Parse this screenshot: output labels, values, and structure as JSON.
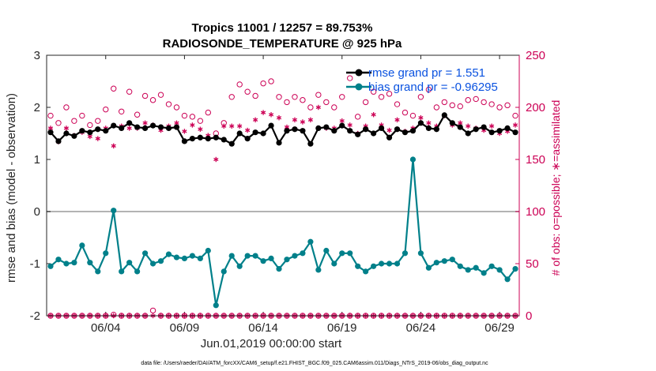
{
  "chart_data": {
    "type": "line",
    "title_line1": "Tropics 11001 / 12257 = 89.753%",
    "title_line2": "RADIOSONDE_TEMPERATURE @ 925 hPa",
    "xlabel": "Jun.01,2019 00:00:00 start",
    "ylabel": "rmse and bias (model - observation)",
    "y2label": "# of obs: o=possible; ∗=assimilated",
    "footer": "data file: /Users/raeder/DAI/ATM_forcXX/CAM6_setup/f.e21.FHIST_BGC.f09_025.CAM6assim.011/Diags_NTrS_2019-06/obs_diag_output.nc",
    "xlim": [
      0.75,
      30.75
    ],
    "ylim": [
      -2,
      3
    ],
    "y2lim": [
      0,
      250
    ],
    "x_tick_values": [
      4.5,
      9.5,
      14.5,
      19.5,
      24.5,
      29.5
    ],
    "x_tick_labels": [
      "06/04",
      "06/09",
      "06/14",
      "06/19",
      "06/24",
      "06/29"
    ],
    "y_ticks": [
      -2,
      -1,
      0,
      1,
      2,
      3
    ],
    "y2_ticks": [
      0,
      50,
      100,
      150,
      200,
      250
    ],
    "zero_line": 0,
    "x": [
      1.0,
      1.5,
      2.0,
      2.5,
      3.0,
      3.5,
      4.0,
      4.5,
      5.0,
      5.5,
      6.0,
      6.5,
      7.0,
      7.5,
      8.0,
      8.5,
      9.0,
      9.5,
      10.0,
      10.5,
      11.0,
      11.5,
      12.0,
      12.5,
      13.0,
      13.5,
      14.0,
      14.5,
      15.0,
      15.5,
      16.0,
      16.5,
      17.0,
      17.5,
      18.0,
      18.5,
      19.0,
      19.5,
      20.0,
      20.5,
      21.0,
      21.5,
      22.0,
      22.5,
      23.0,
      23.5,
      24.0,
      24.5,
      25.0,
      25.5,
      26.0,
      26.5,
      27.0,
      27.5,
      28.0,
      28.5,
      29.0,
      29.5,
      30.0,
      30.5
    ],
    "series": [
      {
        "name": "rmse",
        "legend": "rmse grand pr = 1.551",
        "color": "#000000",
        "values": [
          1.52,
          1.35,
          1.5,
          1.45,
          1.55,
          1.52,
          1.58,
          1.55,
          1.65,
          1.6,
          1.7,
          1.62,
          1.6,
          1.65,
          1.62,
          1.6,
          1.62,
          1.35,
          1.4,
          1.42,
          1.4,
          1.42,
          1.38,
          1.3,
          1.5,
          1.4,
          1.52,
          1.5,
          1.65,
          1.32,
          1.55,
          1.58,
          1.55,
          1.3,
          1.6,
          1.62,
          1.55,
          1.65,
          1.55,
          1.48,
          1.58,
          1.5,
          1.6,
          1.42,
          1.58,
          1.52,
          1.55,
          1.7,
          1.6,
          1.58,
          1.85,
          1.7,
          1.62,
          1.5,
          1.58,
          1.62,
          1.52,
          1.55,
          1.6,
          1.52
        ]
      },
      {
        "name": "bias",
        "legend": "bias grand pr = -0.96295",
        "color": "#00808a",
        "values": [
          -1.05,
          -0.92,
          -1.0,
          -0.98,
          -0.65,
          -0.98,
          -1.15,
          -0.8,
          0.02,
          -1.15,
          -0.98,
          -1.15,
          -0.8,
          -1.0,
          -0.95,
          -0.82,
          -0.88,
          -0.9,
          -0.85,
          -0.9,
          -0.75,
          -1.8,
          -1.15,
          -0.85,
          -1.05,
          -0.85,
          -0.85,
          -0.95,
          -0.9,
          -1.1,
          -0.92,
          -0.85,
          -0.8,
          -0.58,
          -1.12,
          -0.75,
          -1.0,
          -0.8,
          -0.8,
          -1.05,
          -1.15,
          -1.05,
          -1.0,
          -1.0,
          -1.0,
          -0.8,
          1.0,
          -0.8,
          -1.08,
          -0.98,
          -0.95,
          -0.92,
          -1.05,
          -1.12,
          -1.08,
          -1.18,
          -1.05,
          -1.12,
          -1.3,
          -1.1
        ]
      },
      {
        "name": "possible",
        "color": "#cc0055",
        "values": [
          192,
          185,
          200,
          187,
          192,
          183,
          187,
          198,
          218,
          196,
          215,
          193,
          211,
          207,
          212,
          203,
          200,
          192,
          191,
          187,
          195,
          175,
          185,
          210,
          222,
          215,
          211,
          223,
          225,
          210,
          205,
          210,
          207,
          200,
          212,
          205,
          200,
          210,
          228,
          191,
          205,
          215,
          210,
          213,
          203,
          195,
          192,
          210,
          217,
          200,
          205,
          202,
          201,
          207,
          208,
          205,
          203,
          200,
          202,
          192
        ]
      },
      {
        "name": "assimilated",
        "color": "#cc0055",
        "values": [
          180,
          167,
          180,
          173,
          176,
          172,
          170,
          180,
          163,
          182,
          180,
          180,
          185,
          183,
          178,
          182,
          185,
          177,
          183,
          179,
          173,
          150,
          182,
          182,
          182,
          178,
          188,
          195,
          193,
          190,
          181,
          188,
          186,
          188,
          200,
          180,
          180,
          187,
          183,
          175,
          182,
          193,
          183,
          178,
          188,
          177,
          180,
          190,
          185,
          182,
          192,
          183,
          185,
          182,
          180,
          178,
          182,
          175,
          177,
          183
        ]
      },
      {
        "name": "possible_lower",
        "color": "#cc0055",
        "values": [
          0,
          0,
          0,
          0,
          0,
          0,
          0,
          0,
          1,
          0,
          0,
          0,
          0,
          5,
          0,
          0,
          0,
          0,
          0,
          0,
          0,
          0,
          0,
          0,
          0,
          0,
          0,
          0,
          0,
          0,
          0,
          0,
          0,
          0,
          0,
          0,
          0,
          0,
          0,
          0,
          0,
          0,
          0,
          0,
          0,
          0,
          0,
          0,
          0,
          0,
          0,
          0,
          0,
          0,
          0,
          0,
          0,
          0,
          0,
          0
        ]
      },
      {
        "name": "assimilated_lower",
        "color": "#cc0055",
        "values": [
          0,
          0,
          0,
          0,
          0,
          0,
          0,
          0,
          0,
          0,
          0,
          0,
          0,
          0,
          0,
          0,
          0,
          0,
          0,
          0,
          0,
          0,
          0,
          0,
          0,
          0,
          0,
          0,
          0,
          0,
          0,
          0,
          0,
          0,
          0,
          0,
          0,
          0,
          0,
          0,
          0,
          0,
          0,
          0,
          0,
          0,
          0,
          0,
          0,
          0,
          0,
          0,
          0,
          0,
          0,
          0,
          0,
          0,
          0,
          0
        ]
      }
    ]
  }
}
